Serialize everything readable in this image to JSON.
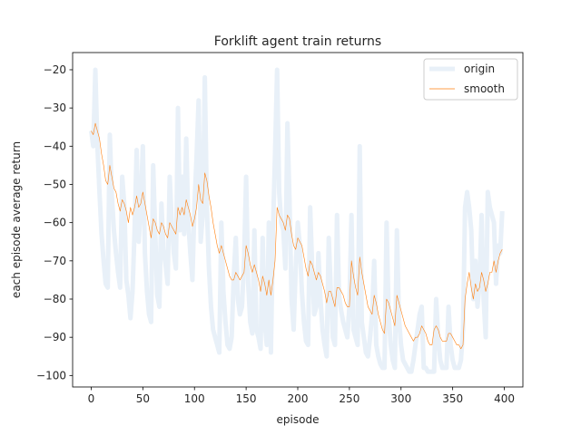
{
  "chart_data": {
    "type": "line",
    "title": "Forklift agent train returns",
    "xlabel": "episode",
    "ylabel": "each episode average return",
    "xlim": [
      -18,
      418
    ],
    "ylim": [
      -103,
      -15.5
    ],
    "xticks": [
      0,
      50,
      100,
      150,
      200,
      250,
      300,
      350,
      400
    ],
    "yticks": [
      -100,
      -90,
      -80,
      -70,
      -60,
      -50,
      -40,
      -30,
      -20
    ],
    "grid": false,
    "legend_position": "top-right",
    "series": [
      {
        "name": "origin",
        "color": "#e8f0f8",
        "x": [
          0,
          2,
          4,
          6,
          8,
          10,
          12,
          14,
          16,
          18,
          20,
          22,
          24,
          26,
          28,
          30,
          32,
          34,
          36,
          38,
          40,
          42,
          44,
          46,
          48,
          50,
          52,
          54,
          56,
          58,
          60,
          62,
          64,
          66,
          68,
          70,
          72,
          74,
          76,
          78,
          80,
          82,
          84,
          86,
          88,
          90,
          92,
          94,
          96,
          98,
          100,
          102,
          104,
          106,
          108,
          110,
          112,
          114,
          116,
          118,
          120,
          122,
          124,
          126,
          128,
          130,
          132,
          134,
          136,
          138,
          140,
          142,
          144,
          146,
          148,
          150,
          152,
          154,
          156,
          158,
          160,
          162,
          164,
          166,
          168,
          170,
          172,
          174,
          176,
          178,
          180,
          182,
          184,
          186,
          188,
          190,
          192,
          194,
          196,
          198,
          200,
          202,
          204,
          206,
          208,
          210,
          212,
          214,
          216,
          218,
          220,
          222,
          224,
          226,
          228,
          230,
          232,
          234,
          236,
          238,
          240,
          242,
          244,
          246,
          248,
          250,
          252,
          254,
          256,
          258,
          260,
          262,
          264,
          266,
          268,
          270,
          272,
          274,
          276,
          278,
          280,
          282,
          284,
          286,
          288,
          290,
          292,
          294,
          296,
          298,
          300,
          302,
          304,
          306,
          308,
          310,
          312,
          314,
          316,
          318,
          320,
          322,
          324,
          326,
          328,
          330,
          332,
          334,
          336,
          338,
          340,
          342,
          344,
          346,
          348,
          350,
          352,
          354,
          356,
          358,
          360,
          362,
          364,
          366,
          368,
          370,
          372,
          374,
          376,
          378,
          380,
          382,
          384,
          386,
          388,
          390,
          392,
          394,
          396,
          398
        ],
        "values": [
          -36,
          -40,
          -20,
          -40,
          -52,
          -63,
          -70,
          -76,
          -77,
          -37,
          -53,
          -62,
          -68,
          -73,
          -77,
          -48,
          -55,
          -75,
          -79,
          -85,
          -78,
          -62,
          -41,
          -65,
          -55,
          -40,
          -68,
          -78,
          -84,
          -86,
          -45,
          -63,
          -79,
          -82,
          -55,
          -67,
          -71,
          -76,
          -48,
          -60,
          -68,
          -72,
          -30,
          -62,
          -48,
          -63,
          -38,
          -60,
          -68,
          -75,
          -55,
          -43,
          -28,
          -65,
          -58,
          -22,
          -56,
          -72,
          -82,
          -88,
          -90,
          -92,
          -94,
          -60,
          -78,
          -86,
          -92,
          -93,
          -90,
          -74,
          -64,
          -80,
          -84,
          -82,
          -70,
          -48,
          -76,
          -86,
          -89,
          -62,
          -88,
          -90,
          -93,
          -64,
          -86,
          -92,
          -60,
          -94,
          -62,
          -42,
          -20,
          -52,
          -60,
          -62,
          -72,
          -34,
          -54,
          -80,
          -88,
          -72,
          -60,
          -66,
          -78,
          -86,
          -91,
          -92,
          -56,
          -72,
          -84,
          -82,
          -68,
          -80,
          -88,
          -92,
          -95,
          -64,
          -78,
          -90,
          -92,
          -58,
          -79,
          -83,
          -86,
          -88,
          -90,
          -82,
          -58,
          -88,
          -90,
          -92,
          -40,
          -86,
          -90,
          -94,
          -95,
          -90,
          -84,
          -70,
          -92,
          -95,
          -97,
          -98,
          -98,
          -60,
          -84,
          -92,
          -96,
          -98,
          -62,
          -85,
          -92,
          -96,
          -97,
          -98,
          -99,
          -99,
          -96,
          -92,
          -88,
          -84,
          -82,
          -98,
          -98,
          -99,
          -99,
          -99,
          -99,
          -80,
          -90,
          -96,
          -98,
          -98,
          -98,
          -82,
          -92,
          -96,
          -98,
          -98,
          -98,
          -96,
          -88,
          -56,
          -52,
          -56,
          -62,
          -80,
          -70,
          -82,
          -76,
          -58,
          -80,
          -90,
          -52,
          -56,
          -58,
          -60,
          -76,
          -66,
          -68,
          -57
        ]
      },
      {
        "name": "smooth",
        "color": "#ff7f0e",
        "x": [
          0,
          2,
          4,
          6,
          8,
          10,
          12,
          14,
          16,
          18,
          20,
          22,
          24,
          26,
          28,
          30,
          32,
          34,
          36,
          38,
          40,
          42,
          44,
          46,
          48,
          50,
          52,
          54,
          56,
          58,
          60,
          62,
          64,
          66,
          68,
          70,
          72,
          74,
          76,
          78,
          80,
          82,
          84,
          86,
          88,
          90,
          92,
          94,
          96,
          98,
          100,
          102,
          104,
          106,
          108,
          110,
          112,
          114,
          116,
          118,
          120,
          122,
          124,
          126,
          128,
          130,
          132,
          134,
          136,
          138,
          140,
          142,
          144,
          146,
          148,
          150,
          152,
          154,
          156,
          158,
          160,
          162,
          164,
          166,
          168,
          170,
          172,
          174,
          176,
          178,
          180,
          182,
          184,
          186,
          188,
          190,
          192,
          194,
          196,
          198,
          200,
          202,
          204,
          206,
          208,
          210,
          212,
          214,
          216,
          218,
          220,
          222,
          224,
          226,
          228,
          230,
          232,
          234,
          236,
          238,
          240,
          242,
          244,
          246,
          248,
          250,
          252,
          254,
          256,
          258,
          260,
          262,
          264,
          266,
          268,
          270,
          272,
          274,
          276,
          278,
          280,
          282,
          284,
          286,
          288,
          290,
          292,
          294,
          296,
          298,
          300,
          302,
          304,
          306,
          308,
          310,
          312,
          314,
          316,
          318,
          320,
          322,
          324,
          326,
          328,
          330,
          332,
          334,
          336,
          338,
          340,
          342,
          344,
          346,
          348,
          350,
          352,
          354,
          356,
          358,
          360,
          362,
          364,
          366,
          368,
          370,
          372,
          374,
          376,
          378,
          380,
          382,
          384,
          386,
          388,
          390,
          392,
          394,
          396,
          398
        ],
        "values": [
          -36,
          -37,
          -34,
          -36,
          -38,
          -42,
          -45,
          -49,
          -50,
          -45,
          -48,
          -51,
          -52,
          -55,
          -57,
          -54,
          -55,
          -57,
          -60,
          -56,
          -58,
          -56,
          -53,
          -56,
          -55,
          -52,
          -55,
          -58,
          -61,
          -64,
          -59,
          -60,
          -62,
          -63,
          -60,
          -61,
          -63,
          -64,
          -60,
          -61,
          -62,
          -63,
          -56,
          -58,
          -56,
          -58,
          -54,
          -56,
          -58,
          -61,
          -59,
          -56,
          -50,
          -54,
          -55,
          -47,
          -49,
          -53,
          -56,
          -60,
          -63,
          -66,
          -68,
          -66,
          -68,
          -70,
          -72,
          -74,
          -75,
          -75,
          -73,
          -74,
          -75,
          -74,
          -73,
          -66,
          -68,
          -71,
          -73,
          -71,
          -73,
          -75,
          -78,
          -74,
          -76,
          -79,
          -75,
          -79,
          -75,
          -70,
          -56,
          -58,
          -59,
          -60,
          -62,
          -58,
          -59,
          -63,
          -66,
          -67,
          -64,
          -65,
          -66,
          -69,
          -72,
          -74,
          -70,
          -71,
          -73,
          -75,
          -73,
          -74,
          -76,
          -78,
          -81,
          -78,
          -78,
          -80,
          -82,
          -77,
          -77,
          -78,
          -79,
          -81,
          -82,
          -82,
          -70,
          -74,
          -77,
          -79,
          -69,
          -73,
          -76,
          -79,
          -82,
          -83,
          -84,
          -79,
          -81,
          -84,
          -86,
          -88,
          -89,
          -80,
          -81,
          -83,
          -85,
          -87,
          -79,
          -81,
          -83,
          -85,
          -87,
          -88,
          -89,
          -90,
          -91,
          -90,
          -90,
          -89,
          -87,
          -88,
          -89,
          -91,
          -92,
          -92,
          -88,
          -87,
          -88,
          -90,
          -91,
          -91,
          -91,
          -89,
          -89,
          -90,
          -91,
          -92,
          -92,
          -93,
          -92,
          -80,
          -76,
          -73,
          -77,
          -80,
          -76,
          -78,
          -77,
          -73,
          -75,
          -78,
          -76,
          -73,
          -73,
          -70,
          -73,
          -70,
          -68,
          -67
        ]
      }
    ]
  }
}
